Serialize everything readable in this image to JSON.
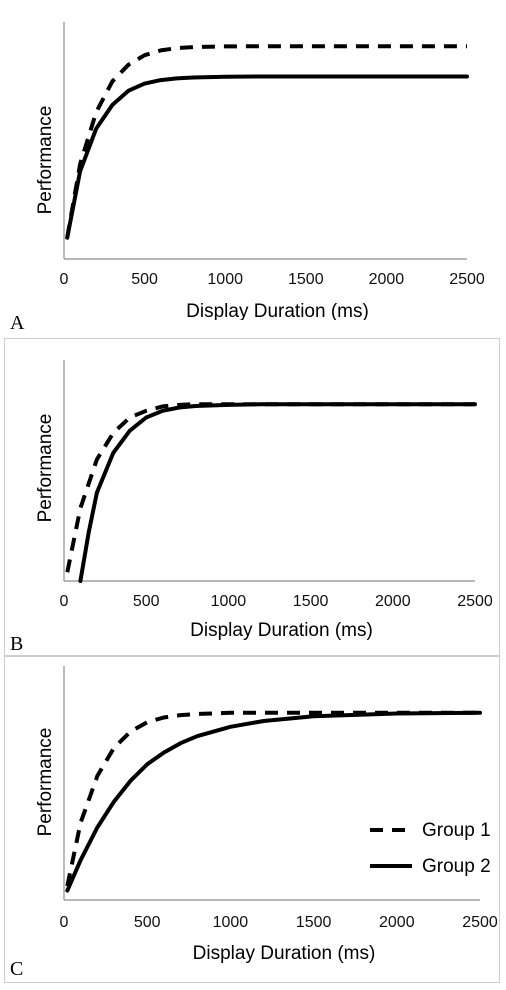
{
  "chart_data": [
    {
      "panel_label": "A",
      "type": "line",
      "xlabel": "Display Duration (ms)",
      "ylabel": "Performance",
      "xlim": [
        0,
        2500
      ],
      "ylim": [
        0,
        1
      ],
      "xticks": [
        "0",
        "500",
        "1000",
        "1500",
        "2000",
        "2500"
      ],
      "legend": false,
      "series": [
        {
          "style": "dashed",
          "x": [
            20,
            100,
            200,
            300,
            400,
            500,
            600,
            700,
            800,
            1000,
            1200,
            1500,
            2000,
            2500
          ],
          "y": [
            0.09,
            0.4,
            0.62,
            0.75,
            0.82,
            0.86,
            0.88,
            0.89,
            0.894,
            0.897,
            0.898,
            0.898,
            0.898,
            0.898
          ]
        },
        {
          "style": "solid",
          "x": [
            20,
            100,
            200,
            300,
            400,
            500,
            600,
            700,
            800,
            1000,
            1200,
            1500,
            2000,
            2500
          ],
          "y": [
            0.09,
            0.37,
            0.55,
            0.65,
            0.71,
            0.74,
            0.755,
            0.762,
            0.766,
            0.769,
            0.77,
            0.77,
            0.77,
            0.77
          ]
        }
      ]
    },
    {
      "panel_label": "B",
      "type": "line",
      "xlabel": "Display Duration (ms)",
      "ylabel": "Performance",
      "xlim": [
        0,
        2500
      ],
      "ylim": [
        0,
        1
      ],
      "xticks": [
        "0",
        "500",
        "1000",
        "1500",
        "2000",
        "2500"
      ],
      "legend": false,
      "series": [
        {
          "style": "dashed",
          "x": [
            20,
            100,
            200,
            300,
            400,
            500,
            600,
            700,
            800,
            1000,
            1200,
            1500,
            2000,
            2500
          ],
          "y": [
            0.04,
            0.33,
            0.55,
            0.67,
            0.74,
            0.77,
            0.79,
            0.797,
            0.8,
            0.8,
            0.8,
            0.8,
            0.8,
            0.8
          ]
        },
        {
          "style": "solid",
          "x": [
            100,
            150,
            200,
            300,
            400,
            500,
            600,
            700,
            800,
            1000,
            1200,
            1500,
            2000,
            2500
          ],
          "y": [
            0.0,
            0.22,
            0.4,
            0.58,
            0.68,
            0.74,
            0.77,
            0.785,
            0.792,
            0.797,
            0.8,
            0.8,
            0.8,
            0.8
          ]
        }
      ]
    },
    {
      "panel_label": "C",
      "type": "line",
      "xlabel": "Display Duration (ms)",
      "ylabel": "Performance",
      "xlim": [
        0,
        2500
      ],
      "ylim": [
        0,
        1
      ],
      "xticks": [
        "0",
        "500",
        "1000",
        "1500",
        "2000",
        "2500"
      ],
      "legend": true,
      "legend_position": "right",
      "series": [
        {
          "name": "Group 1",
          "style": "dashed",
          "x": [
            20,
            100,
            200,
            300,
            400,
            500,
            600,
            700,
            800,
            1000,
            1200,
            1500,
            2000,
            2500
          ],
          "y": [
            0.06,
            0.33,
            0.53,
            0.65,
            0.72,
            0.76,
            0.78,
            0.79,
            0.795,
            0.8,
            0.8,
            0.8,
            0.8,
            0.8
          ]
        },
        {
          "name": "Group 2",
          "style": "solid",
          "x": [
            20,
            100,
            200,
            300,
            400,
            500,
            600,
            700,
            800,
            1000,
            1200,
            1500,
            2000,
            2500
          ],
          "y": [
            0.04,
            0.17,
            0.31,
            0.42,
            0.51,
            0.58,
            0.63,
            0.67,
            0.7,
            0.74,
            0.765,
            0.785,
            0.797,
            0.8
          ]
        }
      ]
    }
  ]
}
